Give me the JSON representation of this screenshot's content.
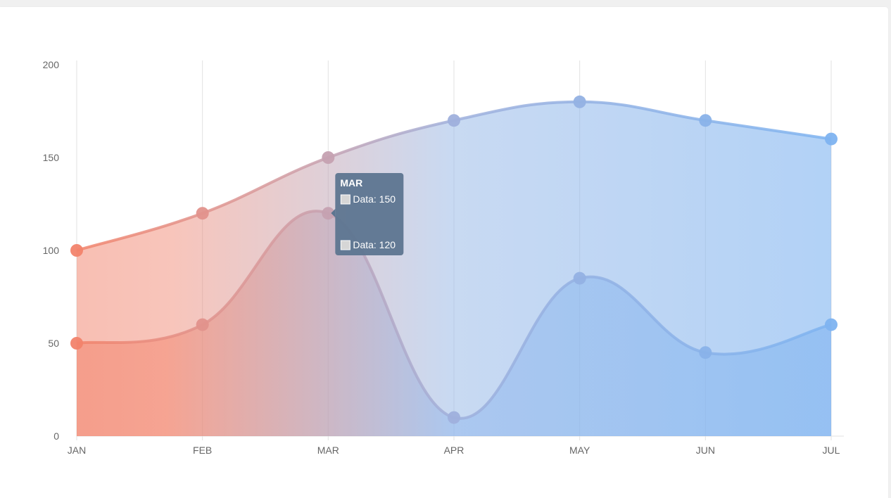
{
  "chart_data": {
    "type": "area",
    "categories": [
      "JAN",
      "FEB",
      "MAR",
      "APR",
      "MAY",
      "JUN",
      "JUL"
    ],
    "ylim": [
      0,
      200
    ],
    "yticks": [
      "0",
      "50",
      "100",
      "150",
      "200"
    ],
    "grid": "vertical",
    "gradient_colors": [
      "#f2836b",
      "#7eb3f0"
    ],
    "series": [
      {
        "values": [
          100,
          120,
          150,
          170,
          180,
          170,
          160
        ]
      },
      {
        "values": [
          50,
          60,
          120,
          10,
          85,
          45,
          60
        ]
      }
    ],
    "tooltip": {
      "title": "MAR",
      "lines": [
        "Data: 150",
        "Data: 120"
      ]
    }
  }
}
